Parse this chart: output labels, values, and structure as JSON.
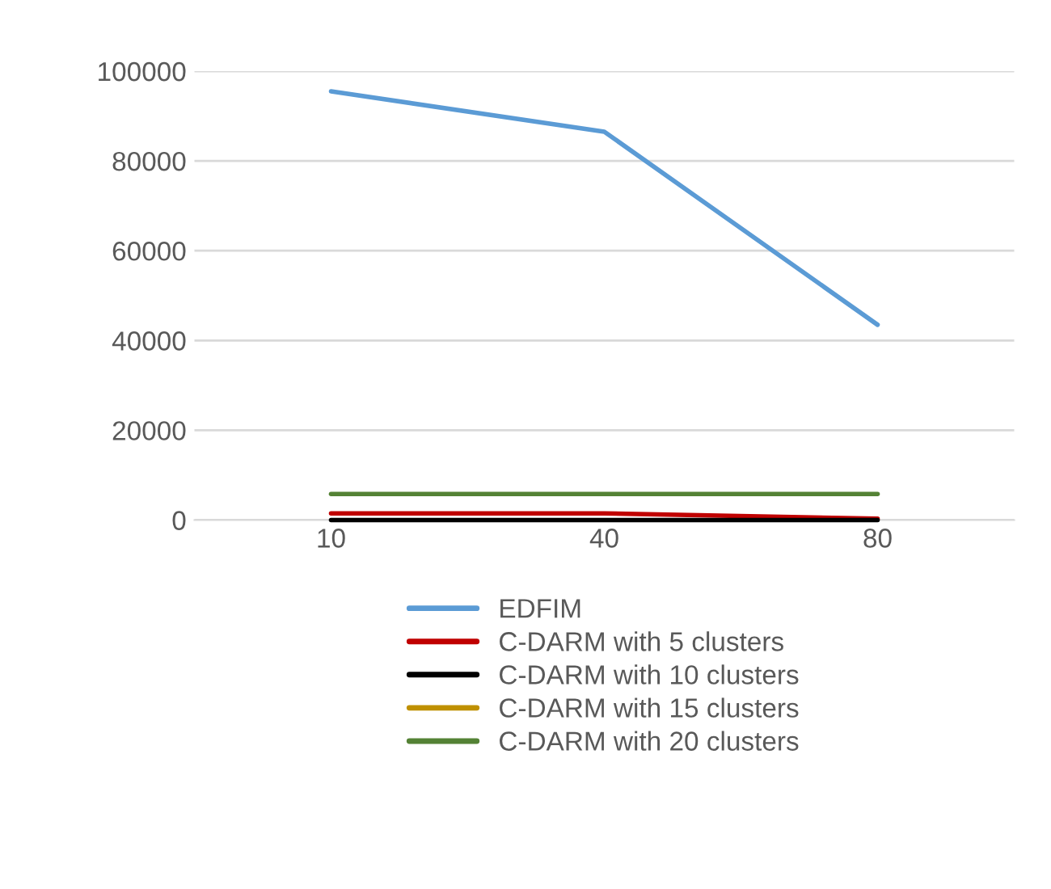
{
  "chart_data": {
    "type": "line",
    "categories": [
      "10",
      "40",
      "80"
    ],
    "series": [
      {
        "name": "EDFIM",
        "color": "#5b9bd5",
        "values": [
          95500,
          86500,
          43500
        ]
      },
      {
        "name": "C-DARM with 5 clusters",
        "color": "#c00000",
        "values": [
          1500,
          1500,
          300
        ]
      },
      {
        "name": "C-DARM with 10 clusters",
        "color": "#000000",
        "values": [
          0,
          0,
          0
        ]
      },
      {
        "name": "C-DARM with 15 clusters",
        "color": "#bf9000",
        "values": [
          null,
          null,
          null
        ]
      },
      {
        "name": "C-DARM with 20 clusters",
        "color": "#548235",
        "values": [
          5800,
          5800,
          5800
        ]
      }
    ],
    "ylim": [
      0,
      100000
    ],
    "yticks": [
      0,
      20000,
      40000,
      60000,
      80000,
      100000
    ],
    "grid": "y",
    "legend": "bottom",
    "marker": "none",
    "line_style": "solid"
  }
}
